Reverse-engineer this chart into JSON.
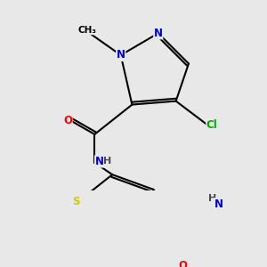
{
  "background_color": "#e8e8e8",
  "bond_color": "#000000",
  "bond_width": 1.5,
  "atom_colors": {
    "N": "#0000cc",
    "O": "#ff0000",
    "S": "#cccc00",
    "Cl": "#00aa00",
    "C": "#000000",
    "H": "#4a4a4a"
  },
  "font_size": 8.5
}
